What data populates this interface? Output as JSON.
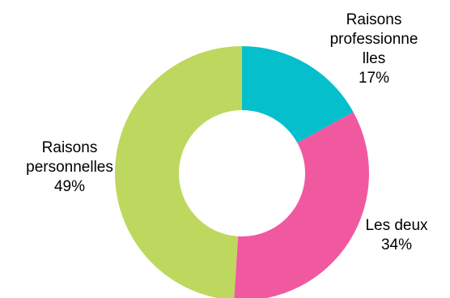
{
  "chart_data": {
    "type": "pie",
    "variant": "donut",
    "slices": [
      {
        "label_lines": [
          "Raisons",
          "professionne",
          "lles"
        ],
        "value": 17,
        "value_label": "17%",
        "color": "#06BFCC"
      },
      {
        "label_lines": [
          "Les deux"
        ],
        "value": 34,
        "value_label": "34%",
        "color": "#F059A0"
      },
      {
        "label_lines": [
          "Raisons",
          "personnelles"
        ],
        "value": 49,
        "value_label": "49%",
        "color": "#BED75F"
      }
    ],
    "legend": false
  }
}
